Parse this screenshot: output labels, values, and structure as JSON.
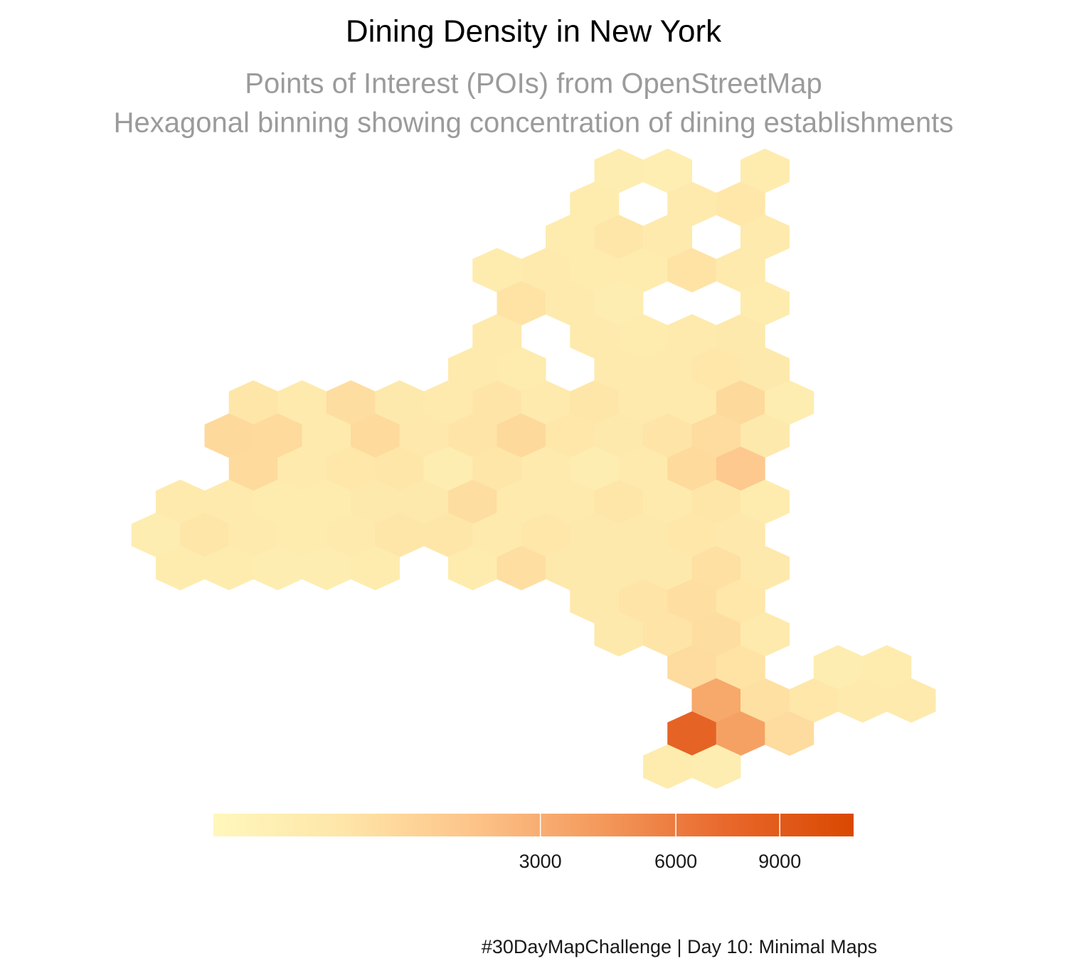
{
  "chart_data": {
    "type": "hexbin",
    "title": "Dining Density in New York",
    "subtitle": [
      "Points of Interest (POIs) from OpenStreetMap",
      "Hexagonal binning showing concentration of dining establishments"
    ],
    "caption": "#30DayMapChallenge | Day 10: Minimal Maps",
    "color_transform": "sqrt",
    "palette": [
      "#fff7bc",
      "#fee6a8",
      "#fdc58a",
      "#f49a5d",
      "#e8682c",
      "#d94801"
    ],
    "clim": [
      0,
      11500
    ],
    "cticks": [
      3000,
      6000,
      9000
    ],
    "hexes": [
      {
        "row": 0,
        "col": 0,
        "count": 150
      },
      {
        "row": 0,
        "col": 2,
        "count": 120
      },
      {
        "row": 0,
        "col": 6,
        "count": 180
      },
      {
        "row": 1,
        "col": -1,
        "count": 200
      },
      {
        "row": 1,
        "col": 3,
        "count": 250
      },
      {
        "row": 1,
        "col": 5,
        "count": 400
      },
      {
        "row": 2,
        "col": -2,
        "count": 200
      },
      {
        "row": 2,
        "col": 0,
        "count": 450
      },
      {
        "row": 2,
        "col": 2,
        "count": 250
      },
      {
        "row": 2,
        "col": 6,
        "count": 250
      },
      {
        "row": 3,
        "col": -5,
        "count": 200
      },
      {
        "row": 3,
        "col": -3,
        "count": 250
      },
      {
        "row": 3,
        "col": -1,
        "count": 180
      },
      {
        "row": 3,
        "col": 1,
        "count": 200
      },
      {
        "row": 3,
        "col": 3,
        "count": 550
      },
      {
        "row": 3,
        "col": 5,
        "count": 250
      },
      {
        "row": 4,
        "col": -4,
        "count": 550
      },
      {
        "row": 4,
        "col": -2,
        "count": 250
      },
      {
        "row": 4,
        "col": 0,
        "count": 150
      },
      {
        "row": 4,
        "col": 6,
        "count": 200
      },
      {
        "row": 5,
        "col": -5,
        "count": 250
      },
      {
        "row": 5,
        "col": -1,
        "count": 250
      },
      {
        "row": 5,
        "col": 1,
        "count": 200
      },
      {
        "row": 5,
        "col": 3,
        "count": 250
      },
      {
        "row": 5,
        "col": 5,
        "count": 300
      },
      {
        "row": 6,
        "col": -6,
        "count": 250
      },
      {
        "row": 6,
        "col": -4,
        "count": 220
      },
      {
        "row": 6,
        "col": 0,
        "count": 250
      },
      {
        "row": 6,
        "col": 2,
        "count": 250
      },
      {
        "row": 6,
        "col": 4,
        "count": 400
      },
      {
        "row": 6,
        "col": 6,
        "count": 300
      },
      {
        "row": 7,
        "col": -15,
        "count": 450
      },
      {
        "row": 7,
        "col": -13,
        "count": 250
      },
      {
        "row": 7,
        "col": -11,
        "count": 750
      },
      {
        "row": 7,
        "col": -9,
        "count": 300
      },
      {
        "row": 7,
        "col": -7,
        "count": 250
      },
      {
        "row": 7,
        "col": -5,
        "count": 500
      },
      {
        "row": 7,
        "col": -3,
        "count": 250
      },
      {
        "row": 7,
        "col": -1,
        "count": 450
      },
      {
        "row": 7,
        "col": 1,
        "count": 250
      },
      {
        "row": 7,
        "col": 3,
        "count": 250
      },
      {
        "row": 7,
        "col": 5,
        "count": 900
      },
      {
        "row": 7,
        "col": 7,
        "count": 150
      },
      {
        "row": 8,
        "col": -16,
        "count": 900
      },
      {
        "row": 8,
        "col": -14,
        "count": 850
      },
      {
        "row": 8,
        "col": -12,
        "count": 250
      },
      {
        "row": 8,
        "col": -10,
        "count": 850
      },
      {
        "row": 8,
        "col": -8,
        "count": 350
      },
      {
        "row": 8,
        "col": -6,
        "count": 500
      },
      {
        "row": 8,
        "col": -4,
        "count": 900
      },
      {
        "row": 8,
        "col": -2,
        "count": 400
      },
      {
        "row": 8,
        "col": 0,
        "count": 300
      },
      {
        "row": 8,
        "col": 2,
        "count": 500
      },
      {
        "row": 8,
        "col": 4,
        "count": 800
      },
      {
        "row": 8,
        "col": 6,
        "count": 300
      },
      {
        "row": 9,
        "col": -15,
        "count": 850
      },
      {
        "row": 9,
        "col": -13,
        "count": 250
      },
      {
        "row": 9,
        "col": -11,
        "count": 400
      },
      {
        "row": 9,
        "col": -9,
        "count": 450
      },
      {
        "row": 9,
        "col": -7,
        "count": 150
      },
      {
        "row": 9,
        "col": -5,
        "count": 450
      },
      {
        "row": 9,
        "col": -3,
        "count": 250
      },
      {
        "row": 9,
        "col": -1,
        "count": 150
      },
      {
        "row": 9,
        "col": 1,
        "count": 250
      },
      {
        "row": 9,
        "col": 3,
        "count": 850
      },
      {
        "row": 9,
        "col": 5,
        "count": 1600
      },
      {
        "row": 10,
        "col": -18,
        "count": 250
      },
      {
        "row": 10,
        "col": -16,
        "count": 250
      },
      {
        "row": 10,
        "col": -14,
        "count": 200
      },
      {
        "row": 10,
        "col": -12,
        "count": 180
      },
      {
        "row": 10,
        "col": -10,
        "count": 300
      },
      {
        "row": 10,
        "col": -8,
        "count": 300
      },
      {
        "row": 10,
        "col": -6,
        "count": 750
      },
      {
        "row": 10,
        "col": -4,
        "count": 250
      },
      {
        "row": 10,
        "col": -2,
        "count": 250
      },
      {
        "row": 10,
        "col": 0,
        "count": 450
      },
      {
        "row": 10,
        "col": 2,
        "count": 250
      },
      {
        "row": 10,
        "col": 4,
        "count": 450
      },
      {
        "row": 10,
        "col": 6,
        "count": 200
      },
      {
        "row": 11,
        "col": -19,
        "count": 150
      },
      {
        "row": 11,
        "col": -17,
        "count": 450
      },
      {
        "row": 11,
        "col": -15,
        "count": 250
      },
      {
        "row": 11,
        "col": -13,
        "count": 200
      },
      {
        "row": 11,
        "col": -11,
        "count": 250
      },
      {
        "row": 11,
        "col": -9,
        "count": 450
      },
      {
        "row": 11,
        "col": -7,
        "count": 450
      },
      {
        "row": 11,
        "col": -5,
        "count": 250
      },
      {
        "row": 11,
        "col": -3,
        "count": 400
      },
      {
        "row": 11,
        "col": -1,
        "count": 300
      },
      {
        "row": 11,
        "col": 1,
        "count": 300
      },
      {
        "row": 11,
        "col": 3,
        "count": 400
      },
      {
        "row": 11,
        "col": 5,
        "count": 350
      },
      {
        "row": 12,
        "col": -18,
        "count": 200
      },
      {
        "row": 12,
        "col": -16,
        "count": 200
      },
      {
        "row": 12,
        "col": -14,
        "count": 150
      },
      {
        "row": 12,
        "col": -12,
        "count": 150
      },
      {
        "row": 12,
        "col": -10,
        "count": 200
      },
      {
        "row": 12,
        "col": -6,
        "count": 200
      },
      {
        "row": 12,
        "col": -4,
        "count": 700
      },
      {
        "row": 12,
        "col": -2,
        "count": 300
      },
      {
        "row": 12,
        "col": 0,
        "count": 300
      },
      {
        "row": 12,
        "col": 2,
        "count": 300
      },
      {
        "row": 12,
        "col": 4,
        "count": 650
      },
      {
        "row": 12,
        "col": 6,
        "count": 300
      },
      {
        "row": 13,
        "col": -1,
        "count": 300
      },
      {
        "row": 13,
        "col": 1,
        "count": 500
      },
      {
        "row": 13,
        "col": 3,
        "count": 700
      },
      {
        "row": 13,
        "col": 5,
        "count": 400
      },
      {
        "row": 14,
        "col": 0,
        "count": 300
      },
      {
        "row": 14,
        "col": 2,
        "count": 500
      },
      {
        "row": 14,
        "col": 4,
        "count": 750
      },
      {
        "row": 14,
        "col": 6,
        "count": 250
      },
      {
        "row": 15,
        "col": 3,
        "count": 800
      },
      {
        "row": 15,
        "col": 5,
        "count": 550
      },
      {
        "row": 15,
        "col": 9,
        "count": 150
      },
      {
        "row": 15,
        "col": 11,
        "count": 180
      },
      {
        "row": 16,
        "col": 4,
        "count": 3300
      },
      {
        "row": 16,
        "col": 6,
        "count": 650
      },
      {
        "row": 16,
        "col": 8,
        "count": 400
      },
      {
        "row": 16,
        "col": 10,
        "count": 250
      },
      {
        "row": 16,
        "col": 12,
        "count": 250
      },
      {
        "row": 17,
        "col": 3,
        "count": 8000
      },
      {
        "row": 17,
        "col": 5,
        "count": 3700
      },
      {
        "row": 17,
        "col": 7,
        "count": 800
      },
      {
        "row": 18,
        "col": 2,
        "count": 200
      },
      {
        "row": 18,
        "col": 4,
        "count": 150
      }
    ]
  }
}
